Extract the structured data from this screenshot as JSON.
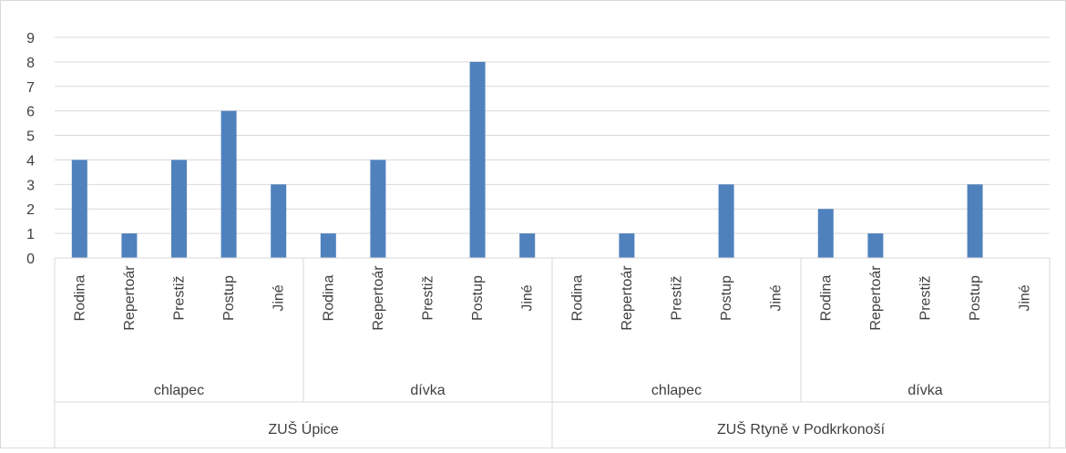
{
  "chart_data": {
    "type": "bar",
    "title": "",
    "xlabel": "",
    "ylabel": "",
    "ylim": [
      0,
      9
    ],
    "yticks": [
      0,
      1,
      2,
      3,
      4,
      5,
      6,
      7,
      8,
      9
    ],
    "grid": true,
    "legend": "none",
    "bar_color": "#4F81BD",
    "groups": [
      {
        "label": "ZUŠ Úpice",
        "subgroups": [
          {
            "label": "chlapec",
            "categories": [
              "Rodina",
              "Repertoár",
              "Prestiž",
              "Postup",
              "Jiné"
            ],
            "values": [
              4,
              1,
              4,
              6,
              3
            ]
          },
          {
            "label": "dívka",
            "categories": [
              "Rodina",
              "Repertoár",
              "Prestiž",
              "Postup",
              "Jiné"
            ],
            "values": [
              1,
              4,
              0,
              8,
              1
            ]
          }
        ]
      },
      {
        "label": "ZUŠ Rtyně v Podkrkonoší",
        "subgroups": [
          {
            "label": "chlapec",
            "categories": [
              "Rodina",
              "Repertoár",
              "Prestiž",
              "Postup",
              "Jiné"
            ],
            "values": [
              0,
              1,
              0,
              3,
              0
            ]
          },
          {
            "label": "dívka",
            "categories": [
              "Rodina",
              "Repertoár",
              "Prestiž",
              "Postup",
              "Jiné"
            ],
            "values": [
              2,
              1,
              0,
              3,
              0
            ]
          }
        ]
      }
    ]
  }
}
